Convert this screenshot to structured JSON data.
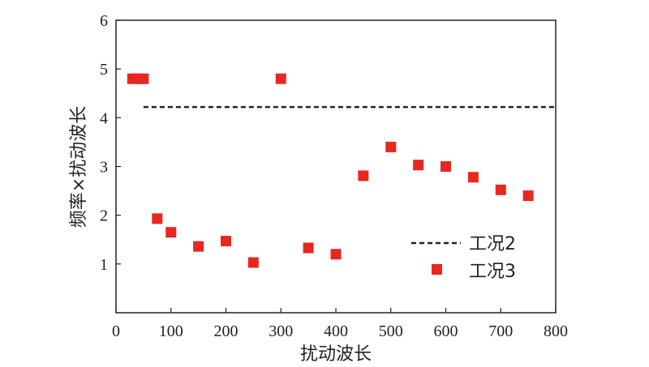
{
  "chart_data": {
    "type": "scatter",
    "xlabel": "扰动波长",
    "ylabel": "频率×扰动波长",
    "xlim": [
      0,
      800
    ],
    "ylim": [
      0,
      6
    ],
    "xticks": [
      0,
      100,
      200,
      300,
      400,
      500,
      600,
      700,
      800
    ],
    "yticks": [
      1,
      2,
      3,
      4,
      5,
      6
    ],
    "x_tick_labels": [
      "0",
      "100",
      "200",
      "300",
      "400",
      "500",
      "600",
      "700",
      "800"
    ],
    "y_tick_labels": [
      "1",
      "2",
      "3",
      "4",
      "5",
      "6"
    ],
    "grid": false,
    "legend_position": "bottom-right",
    "series": [
      {
        "name": "工况2",
        "kind": "dashed-line",
        "color": "#222222",
        "x": [
          50,
          800
        ],
        "y": [
          4.22,
          4.22
        ]
      },
      {
        "name": "工况3",
        "kind": "square-markers",
        "color": "#e8271f",
        "x": [
          30,
          40,
          50,
          75,
          100,
          150,
          200,
          250,
          300,
          350,
          400,
          450,
          500,
          550,
          600,
          650,
          700,
          750
        ],
        "y": [
          4.8,
          4.8,
          4.8,
          1.93,
          1.65,
          1.36,
          1.47,
          1.03,
          4.8,
          1.33,
          1.2,
          2.81,
          3.4,
          3.03,
          3.0,
          2.78,
          2.52,
          2.4
        ]
      }
    ]
  }
}
